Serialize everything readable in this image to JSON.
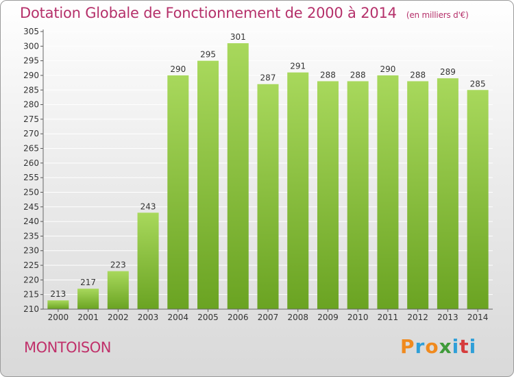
{
  "header": {
    "title": "Dotation Globale de Fonctionnement de 2000 à 2014",
    "unit": "(en milliers d'€)"
  },
  "footer": {
    "town": "MONTOISON",
    "logo": "Proxiti",
    "logo_colors": [
      "#f08a1e",
      "#2f9fd8",
      "#f08a1e",
      "#3f9b3a",
      "#2f9fd8",
      "#d63c3c",
      "#2f9fd8"
    ]
  },
  "colors": {
    "title": "#b5306a",
    "bar_light": "#a8d85c",
    "bar_dark": "#6aa322",
    "grid": "#ffffff"
  },
  "chart_data": {
    "type": "bar",
    "title": "Dotation Globale de Fonctionnement de 2000 à 2014",
    "xlabel": "",
    "ylabel": "",
    "categories": [
      "2000",
      "2001",
      "2002",
      "2003",
      "2004",
      "2005",
      "2006",
      "2007",
      "2008",
      "2009",
      "2010",
      "2011",
      "2012",
      "2013",
      "2014"
    ],
    "values": [
      213,
      217,
      223,
      243,
      290,
      295,
      301,
      287,
      291,
      288,
      288,
      290,
      288,
      289,
      285
    ],
    "ylim": [
      210,
      305
    ],
    "yticks": [
      210,
      215,
      220,
      225,
      230,
      235,
      240,
      245,
      250,
      255,
      260,
      265,
      270,
      275,
      280,
      285,
      290,
      295,
      300,
      305
    ],
    "grid": true,
    "data_labels": true
  }
}
